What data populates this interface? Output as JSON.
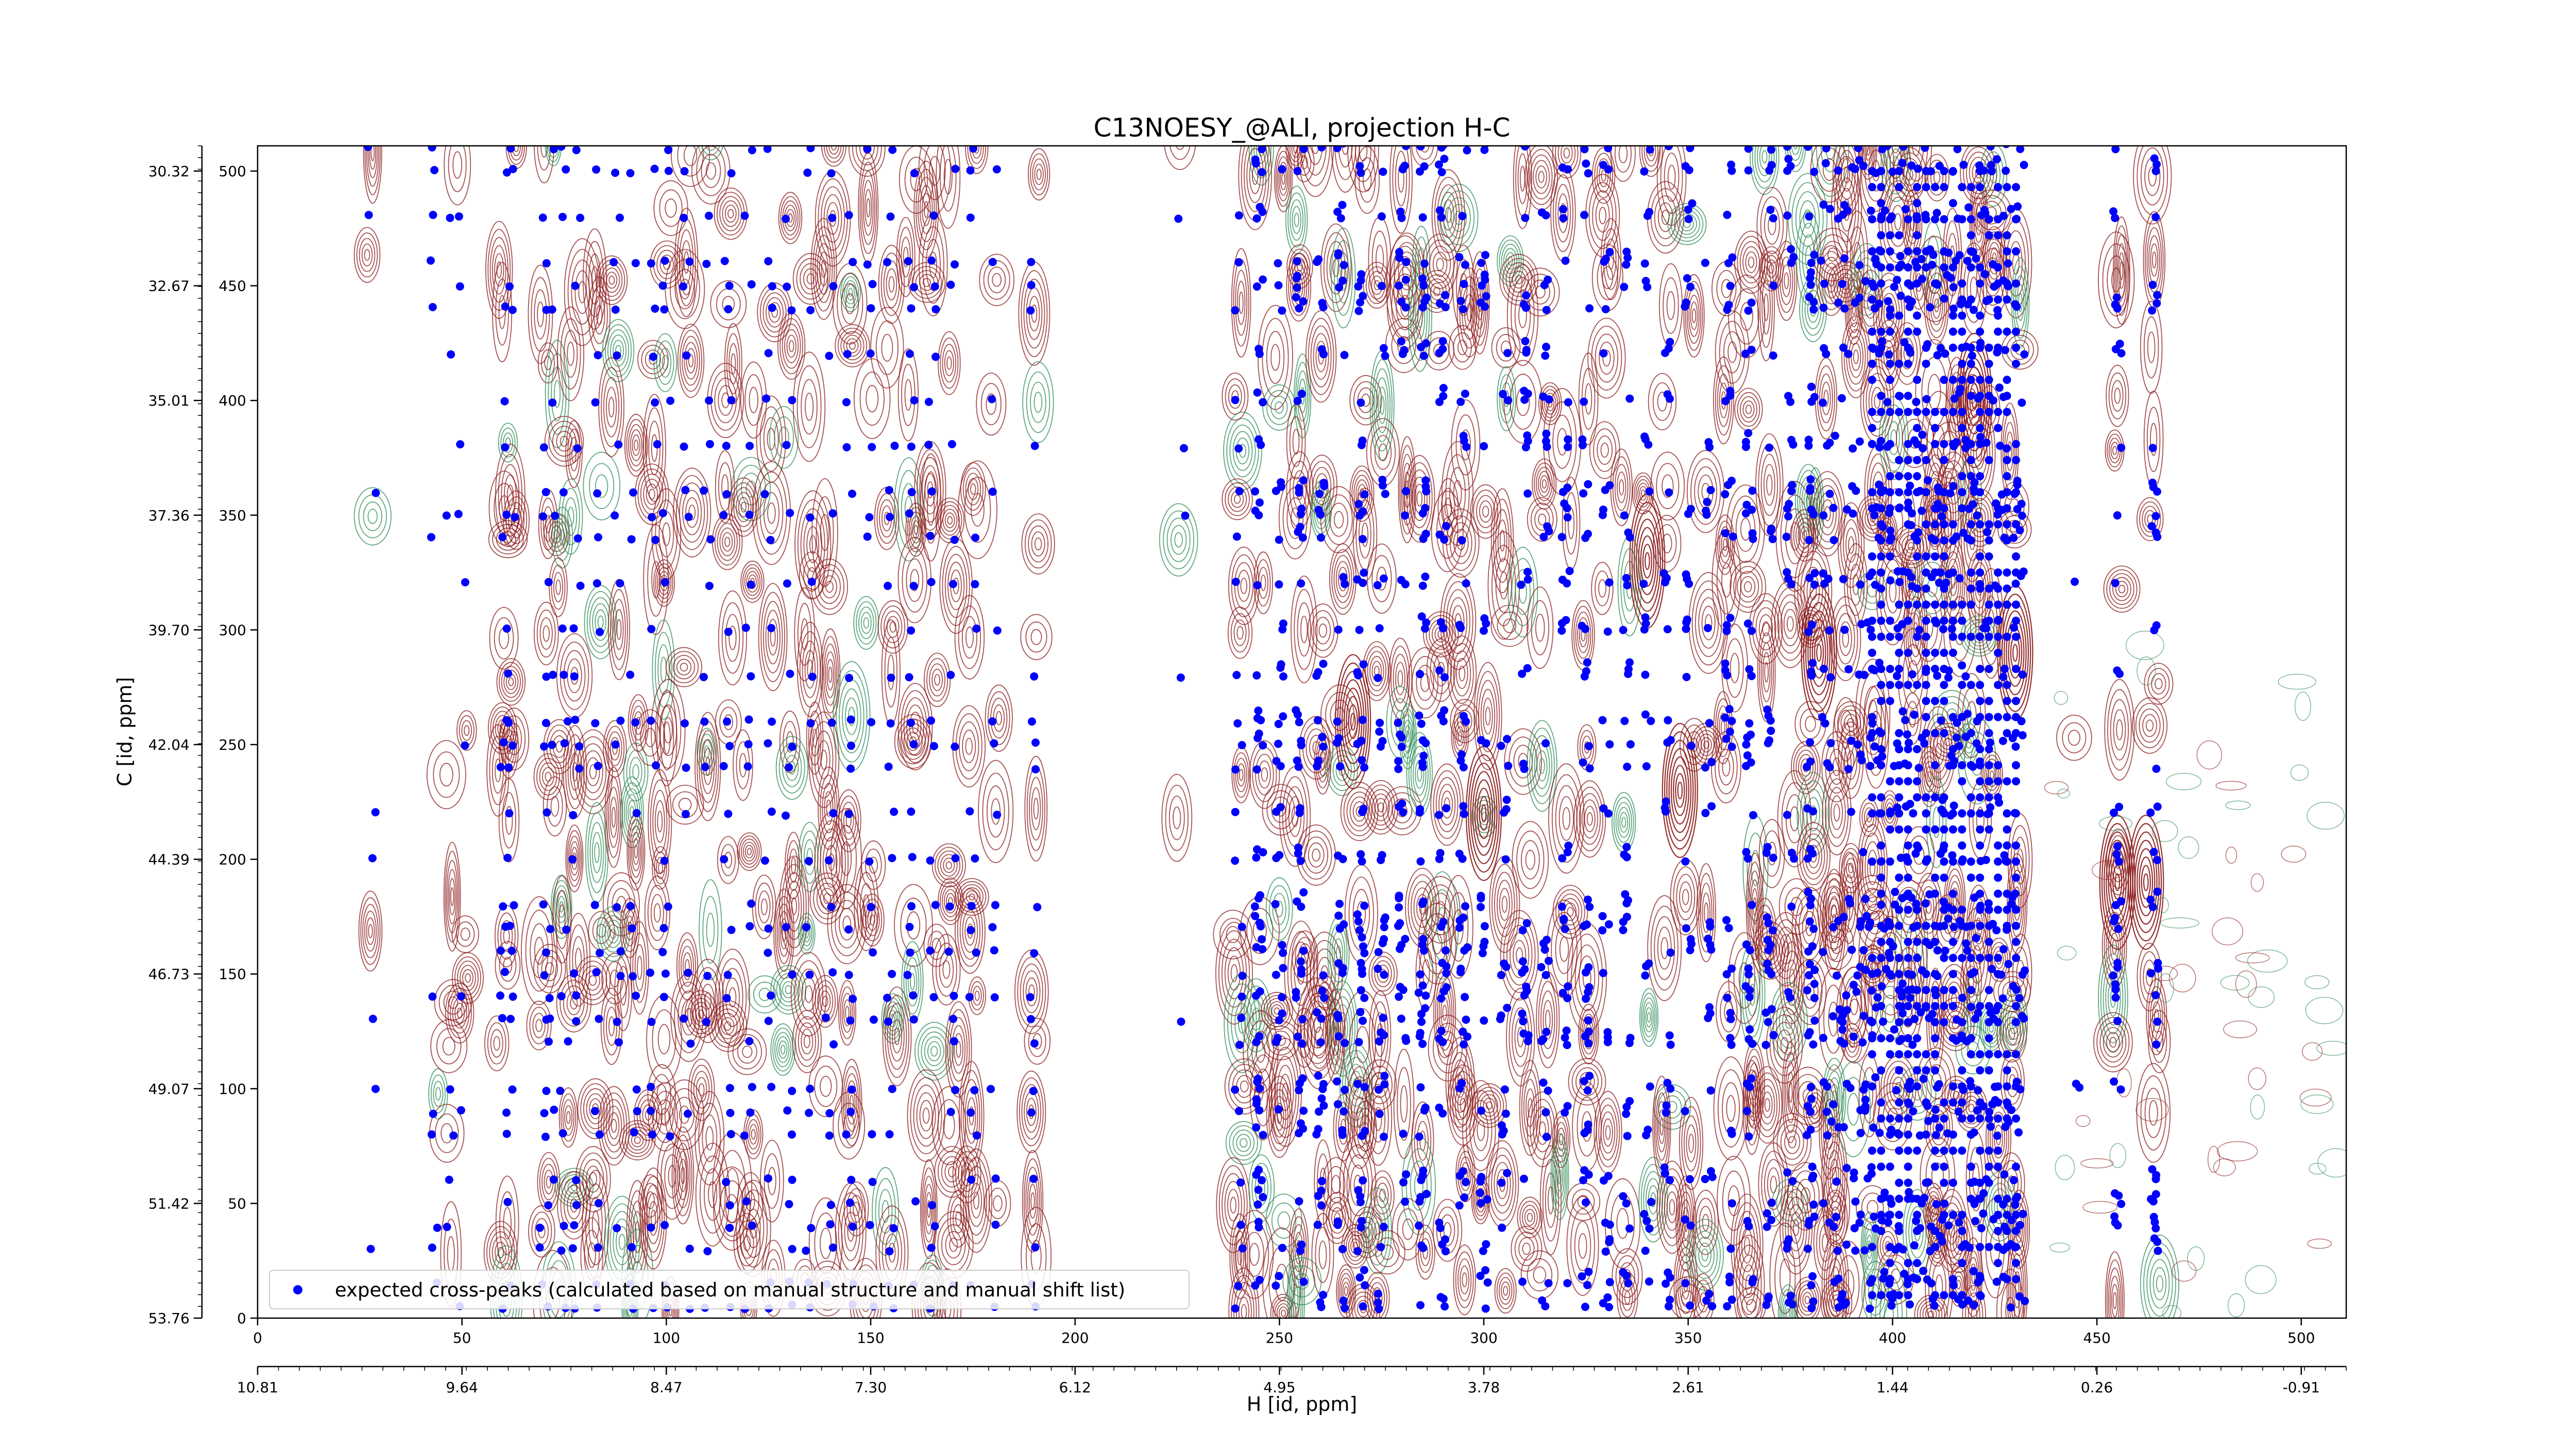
{
  "chart_data": {
    "type": "scatter",
    "title": "C13NOESY_@ALI, projection H-C",
    "xlabel": "H [id, ppm]",
    "ylabel": "C [id, ppm]",
    "xlim": [
      0,
      511
    ],
    "ylim": [
      0,
      511
    ],
    "x_index_ticks": [
      0,
      50,
      100,
      150,
      200,
      250,
      300,
      350,
      400,
      450,
      500
    ],
    "x_index_tick_labels": [
      "0",
      "50",
      "100",
      "150",
      "200",
      "250",
      "300",
      "350",
      "400",
      "450",
      "500"
    ],
    "x_ppm_tick_labels": [
      "10.81",
      "9.64",
      "8.47",
      "7.30",
      "6.12",
      "4.95",
      "3.78",
      "2.61",
      "1.44",
      "0.26",
      "-0.91"
    ],
    "y_index_ticks": [
      500,
      450,
      400,
      350,
      300,
      250,
      200,
      150,
      100,
      50,
      0
    ],
    "y_index_tick_labels": [
      "500",
      "450",
      "400",
      "350",
      "300",
      "250",
      "200",
      "150",
      "100",
      "50",
      "0"
    ],
    "y_ppm_tick_labels": [
      "30.32",
      "32.67",
      "35.01",
      "37.36",
      "39.70",
      "42.04",
      "44.39",
      "46.73",
      "49.07",
      "51.42",
      "53.76"
    ],
    "legend": {
      "position": "lower-left",
      "entries": [
        "expected cross-peaks (calculated based on manual structure and manual shift list)"
      ]
    },
    "grid": false,
    "colors": {
      "markers": "#0000ff",
      "positive_contours": "#8b1a1a",
      "negative_contours": "#2e8b57"
    },
    "peak_columns_x": [
      28,
      43,
      47,
      50,
      60,
      62,
      70,
      72,
      75,
      78,
      83,
      88,
      92,
      97,
      100,
      105,
      110,
      115,
      120,
      125,
      130,
      135,
      140,
      145,
      150,
      155,
      160,
      165,
      170,
      175,
      180,
      190,
      226,
      240,
      245,
      250,
      255,
      260,
      265,
      270,
      275,
      280,
      285,
      290,
      295,
      300,
      305,
      310,
      315,
      320,
      325,
      330,
      335,
      340,
      345,
      350,
      355,
      360,
      365,
      370,
      375,
      380,
      385,
      390,
      395,
      400,
      405,
      410,
      415,
      420,
      425,
      430,
      445,
      455,
      464
    ],
    "peak_rows_y": [
      510,
      500,
      480,
      460,
      450,
      440,
      420,
      400,
      380,
      360,
      350,
      340,
      320,
      300,
      280,
      260,
      250,
      240,
      220,
      200,
      180,
      170,
      160,
      150,
      140,
      130,
      120,
      100,
      90,
      80,
      60,
      50,
      40,
      30,
      15,
      5
    ]
  }
}
